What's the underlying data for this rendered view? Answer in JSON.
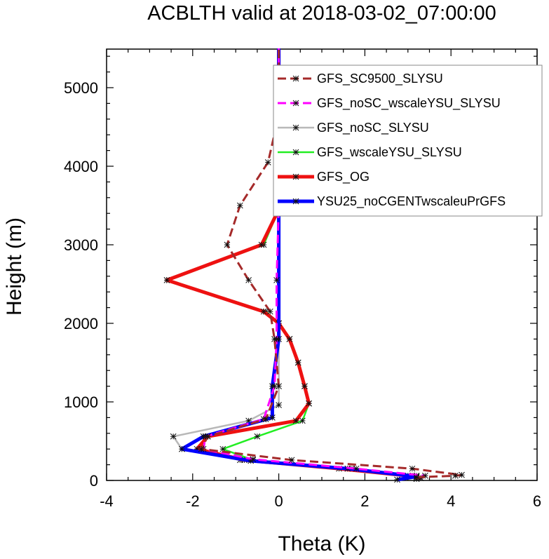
{
  "chart_data": {
    "type": "line",
    "title": "ACBLTH valid at 2018-03-02_07:00:00",
    "xlabel": "Theta (K)",
    "ylabel": "Height (m)",
    "xlim": [
      -4,
      6
    ],
    "ylim": [
      0,
      5500
    ],
    "xticks": [
      -4,
      -2,
      0,
      2,
      4,
      6
    ],
    "yticks": [
      0,
      1000,
      2000,
      3000,
      4000,
      5000
    ],
    "xtick_labels": [
      "-4",
      "-2",
      "0",
      "2",
      "4",
      "6"
    ],
    "ytick_labels": [
      "0",
      "1000",
      "2000",
      "3000",
      "4000",
      "5000"
    ],
    "grid": false,
    "legend_position": "top-right",
    "series": [
      {
        "name": "GFS_SC9500_SLYSU",
        "color": "#a52a2a",
        "dash": "dashed",
        "marker": "star",
        "x": [
          3.2,
          4.1,
          4.25,
          3.1,
          0.3,
          -1.8,
          -1.65,
          -0.3,
          0.0,
          -0.1,
          -0.2,
          -0.7,
          -1.2,
          -0.9,
          -0.25,
          0.0,
          0.0
        ],
        "y": [
          40,
          60,
          70,
          150,
          260,
          400,
          560,
          780,
          1200,
          1800,
          2150,
          2550,
          3000,
          3500,
          4050,
          4650,
          5500
        ]
      },
      {
        "name": "GFS_noSC_wscaleYSU_SLYSU",
        "color": "#ff00ff",
        "dash": "dashed",
        "marker": "star",
        "x": [
          3.3,
          3.4,
          1.8,
          -0.6,
          -1.75,
          -1.7,
          -0.35,
          -0.1,
          -0.05,
          -0.05,
          0.0,
          0.0,
          0.0
        ],
        "y": [
          30,
          60,
          150,
          270,
          400,
          560,
          780,
          1200,
          1800,
          2550,
          3500,
          4650,
          5500
        ]
      },
      {
        "name": "GFS_noSC_SLYSU",
        "color": "#b8b8b8",
        "dash": "solid",
        "marker": "star",
        "x": [
          3.2,
          3.2,
          1.6,
          -0.9,
          -2.25,
          -2.45,
          -0.7,
          0.0,
          0.0,
          0.0,
          0.0,
          0.0
        ],
        "y": [
          20,
          60,
          150,
          260,
          400,
          560,
          760,
          960,
          2000,
          3500,
          4650,
          5500
        ]
      },
      {
        "name": "GFS_wscaleYSU_SLYSU",
        "color": "#22ee22",
        "dash": "solid",
        "marker": "star",
        "x": [
          3.2,
          3.1,
          1.7,
          -0.6,
          -1.3,
          -0.5,
          0.55,
          0.7,
          0.6,
          0.45,
          0.25,
          0.0,
          -0.3,
          -2.55,
          -0.35,
          0.0,
          0.0,
          0.0
        ],
        "y": [
          20,
          60,
          150,
          260,
          400,
          560,
          760,
          980,
          1200,
          1500,
          1800,
          2000,
          2150,
          2550,
          3000,
          3450,
          4650,
          5500
        ]
      },
      {
        "name": "GFS_OG",
        "color": "#ee1111",
        "dash": "solid",
        "marker": "star",
        "x": [
          3.3,
          3.0,
          1.4,
          -0.8,
          -1.9,
          -1.65,
          0.4,
          0.7,
          0.6,
          0.45,
          0.25,
          0.0,
          -0.35,
          -2.6,
          -0.4,
          0.0,
          0.0,
          0.0
        ],
        "y": [
          30,
          60,
          150,
          260,
          400,
          560,
          760,
          980,
          1200,
          1500,
          1800,
          2000,
          2150,
          2550,
          3000,
          3450,
          4650,
          5500
        ]
      },
      {
        "name": "YSU25_noCGENTwscaleuPrGFS",
        "color": "#0000ff",
        "dash": "solid",
        "marker": "star",
        "x": [
          2.75,
          3.2,
          1.6,
          -0.65,
          -2.25,
          -1.75,
          -0.15,
          -0.15,
          0.0,
          0.0,
          0.0,
          0.0
        ],
        "y": [
          10,
          50,
          150,
          250,
          400,
          560,
          800,
          1200,
          1800,
          3500,
          4650,
          5500
        ]
      }
    ]
  }
}
